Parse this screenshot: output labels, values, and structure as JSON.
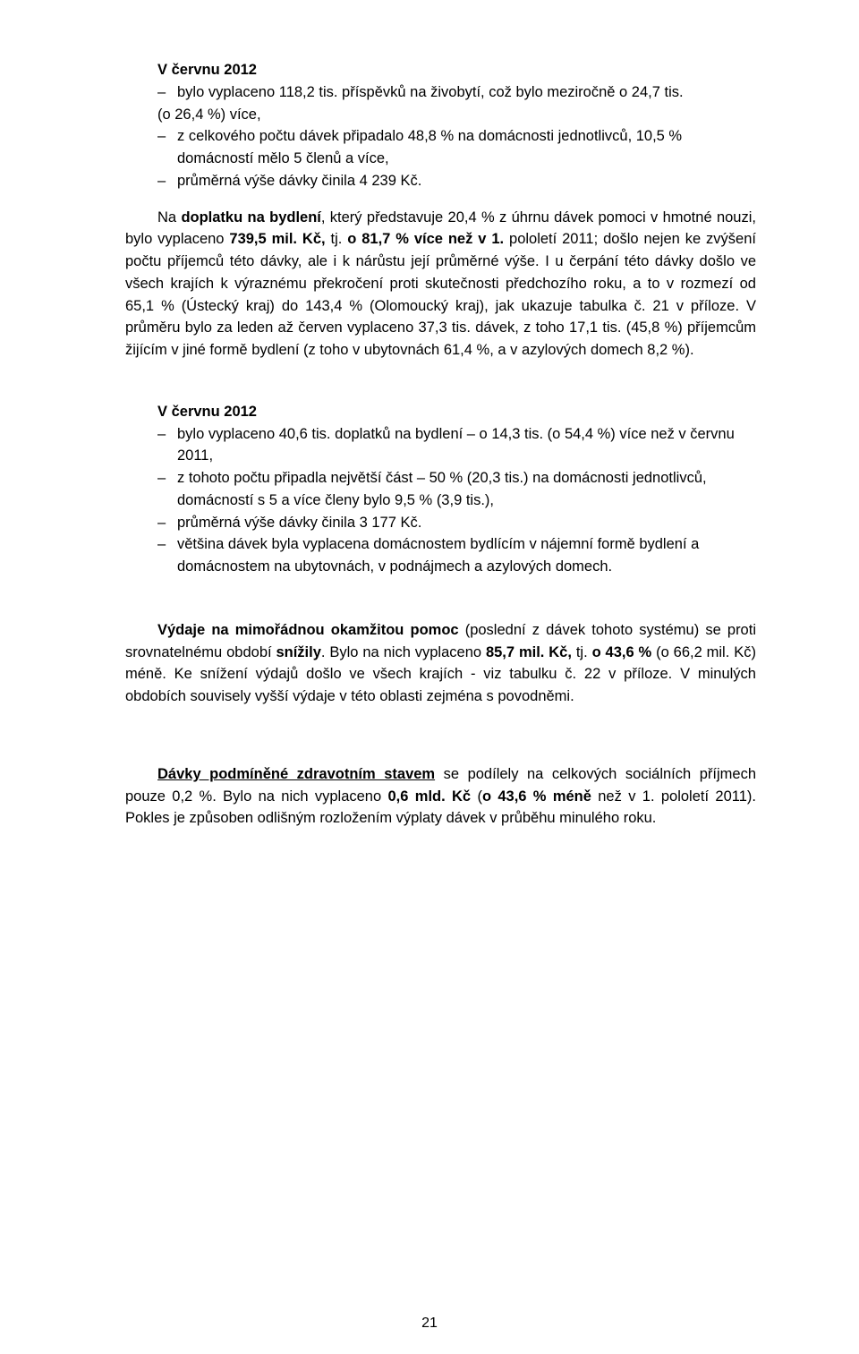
{
  "s1": {
    "heading": "V červnu 2012",
    "b1_a": "bylo vyplaceno 118,2 tis. příspěvků na živobytí, což bylo meziročně o 24,7 tis.",
    "b1_b": "(o 26,4 %) více,",
    "b2": "z celkového počtu dávek připadalo 48,8 % na domácnosti jednotlivců, 10,5 % domácností mělo 5 členů a více,",
    "b3": "průměrná výše dávky činila 4 239 Kč."
  },
  "p1": {
    "t1": "Na ",
    "bold1": "doplatku na bydlení",
    "t2": ", který představuje 20,4 % z úhrnu dávek pomoci v hmotné nouzi, bylo vyplaceno ",
    "bold2": "739,5 mil. Kč,",
    "t3": " tj. ",
    "bold3": "o 81,7 % více než v 1.",
    "t4": " pololetí 2011; došlo nejen ke zvýšení počtu příjemců této dávky, ale i k nárůstu její průměrné výše. I u čerpání této dávky došlo ve všech krajích k výraznému překročení proti skutečnosti předchozího roku, a to v rozmezí od 65,1 % (Ústecký kraj) do 143,4 % (Olomoucký kraj), jak ukazuje tabulka č. 21 v příloze. V průměru bylo za leden až červen vyplaceno 37,3 tis. dávek, z toho 17,1 tis. (45,8 %) příjemcům žijícím v jiné formě bydlení (z toho v ubytovnách 61,4 %, a v azylových domech 8,2 %)."
  },
  "s2": {
    "heading": "V červnu 2012",
    "b1": "bylo vyplaceno 40,6 tis. doplatků na bydlení – o 14,3 tis. (o 54,4 %) více než v červnu 2011,",
    "b2": "z tohoto počtu připadla největší část – 50 % (20,3 tis.) na domácnosti jednotlivců, domácností s 5 a více členy bylo 9,5 % (3,9 tis.),",
    "b3": "průměrná výše dávky činila 3 177 Kč.",
    "b4": "většina dávek byla vyplacena domácnostem bydlícím v nájemní formě bydlení a domácnostem na ubytovnách, v podnájmech a azylových domech."
  },
  "p2": {
    "bold1": "Výdaje na mimořádnou okamžitou pomoc",
    "t1": " (poslední z dávek tohoto systému) se proti srovnatelnému období ",
    "bold2": "snížily",
    "t2": ". Bylo na nich vyplaceno ",
    "bold3": "85,7 mil. Kč,",
    "t3": " tj. ",
    "bold4": "o 43,6 %",
    "t4": " (o 66,2 mil. Kč) méně. Ke snížení výdajů došlo ve všech krajích - viz tabulku č. 22 v příloze. V minulých obdobích souvisely vyšší výdaje v této oblasti zejména s povodněmi."
  },
  "p3": {
    "u1": "Dávky podmíněné zdravotním stavem",
    "t1": " se podílely na celkových sociálních příjmech pouze 0,2 %. Bylo na nich vyplaceno ",
    "bold1": "0,6 mld. Kč",
    "t2": " (",
    "bold2": "o 43,6 % méně",
    "t3": " než v 1. pololetí 2011). Pokles je způsoben odlišným rozložením výplaty dávek v průběhu minulého roku."
  },
  "pagenum": "21"
}
